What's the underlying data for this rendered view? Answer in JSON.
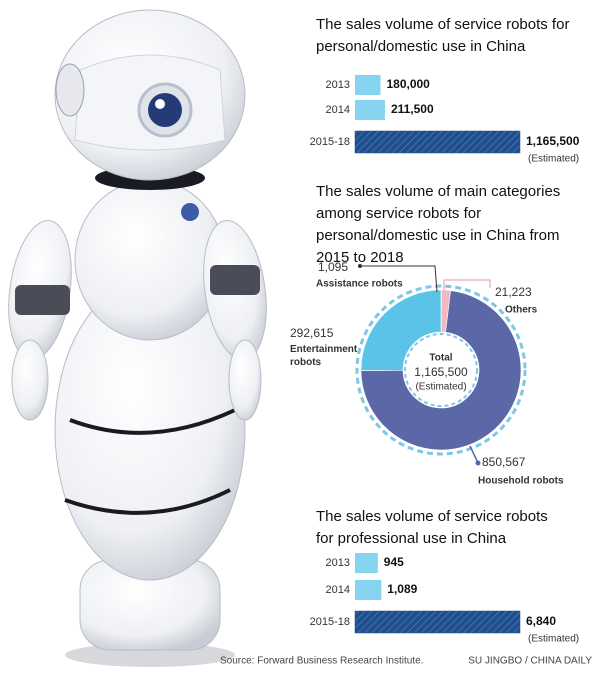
{
  "chart_data": [
    {
      "type": "hbar",
      "title": [
        "The sales volume of service robots for",
        "personal/domestic use in China"
      ],
      "categories": [
        "2013",
        "2014",
        "2015-18"
      ],
      "values": [
        180000,
        211500,
        1165500
      ],
      "value_labels": [
        "180,000",
        "211,500",
        "1,165,500"
      ],
      "colors": [
        "#86d3ef",
        "#86d3ef",
        "#1f4e8c"
      ],
      "hatched": [
        false,
        false,
        true
      ],
      "annotation": "(Estimated)"
    },
    {
      "type": "pie",
      "title": [
        "The sales volume of main categories",
        "among service robots for",
        "personal/domestic use in China from",
        "2015 to 2018"
      ],
      "categories": [
        "Assistance robots",
        "Others",
        "Household robots",
        "Entertainment robots"
      ],
      "values": [
        1095,
        21223,
        850567,
        292615
      ],
      "value_labels": [
        "1,095",
        "21,223",
        "850,567",
        "292,615"
      ],
      "colors": [
        "#2e3d6b",
        "#f2b7c2",
        "#5b67a6",
        "#5cc3e8"
      ],
      "center_text": [
        "Total",
        "1,165,500",
        "(Estimated)"
      ]
    },
    {
      "type": "hbar",
      "title": [
        "The sales volume of service robots",
        "for professional use in China"
      ],
      "categories": [
        "2013",
        "2014",
        "2015-18"
      ],
      "values": [
        945,
        1089,
        6840
      ],
      "value_labels": [
        "945",
        "1,089",
        "6,840"
      ],
      "colors": [
        "#86d3ef",
        "#86d3ef",
        "#1f4e8c"
      ],
      "hatched": [
        false,
        false,
        true
      ],
      "annotation": "(Estimated)"
    }
  ],
  "source": "Source: Forward Business Research Institute.",
  "credit": "SU JINGBO / CHINA DAILY"
}
